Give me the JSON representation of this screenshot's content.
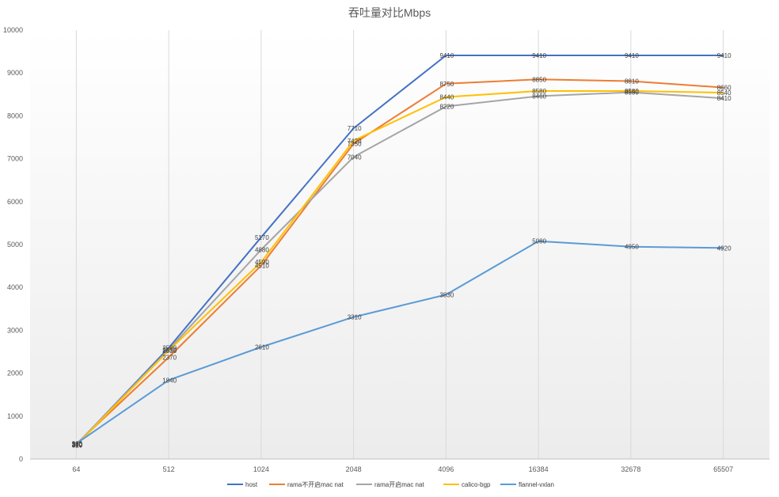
{
  "chart_data": {
    "type": "line",
    "title": "吞吐量对比Mbps",
    "xlabel": "",
    "ylabel": "",
    "categories": [
      "64",
      "512",
      "1024",
      "2048",
      "4096",
      "16384",
      "32678",
      "65507"
    ],
    "ylim": [
      0,
      10000
    ],
    "yticks": [
      0,
      1000,
      2000,
      3000,
      4000,
      5000,
      6000,
      7000,
      8000,
      9000,
      10000
    ],
    "grid": "vertical lines at categories",
    "legend": "bottom",
    "series": [
      {
        "name": "host",
        "color": "#4472C4",
        "values": [
          330,
          2590,
          5170,
          7710,
          9410,
          9410,
          9410,
          9410
        ],
        "labels": [
          "330",
          "2590",
          "5170",
          "7710",
          "9410",
          "9410",
          "9410",
          "9410"
        ]
      },
      {
        "name": "rama不开启mac nat",
        "color": "#ED7D31",
        "values": [
          350,
          2370,
          4510,
          7350,
          8750,
          8850,
          8810,
          8660
        ],
        "labels": [
          "350",
          "2370",
          "4510",
          "7350",
          "8750",
          "8850",
          "8810",
          "8660"
        ]
      },
      {
        "name": "rama开启mac nat",
        "color": "#A5A5A5",
        "values": [
          340,
          2550,
          4880,
          7040,
          8220,
          8460,
          8550,
          8410
        ],
        "labels": [
          "340",
          "2550",
          "4880",
          "7040",
          "8220",
          "8460",
          "8550",
          "8410"
        ]
      },
      {
        "name": "calico-bgp",
        "color": "#FFC000",
        "values": [
          320,
          2530,
          4590,
          7420,
          8440,
          8580,
          8580,
          8540
        ],
        "labels": [
          "320",
          "2530",
          "4590",
          "7420",
          "8440",
          "8580",
          "8580",
          "8540"
        ]
      },
      {
        "name": "flannel-vxlan",
        "color": "#5B9BD5",
        "values": [
          360,
          1840,
          2610,
          3310,
          3830,
          5080,
          4950,
          4920
        ],
        "labels": [
          "360",
          "1840",
          "2610",
          "3310",
          "3830",
          "5080",
          "4950",
          "4920"
        ]
      }
    ]
  }
}
